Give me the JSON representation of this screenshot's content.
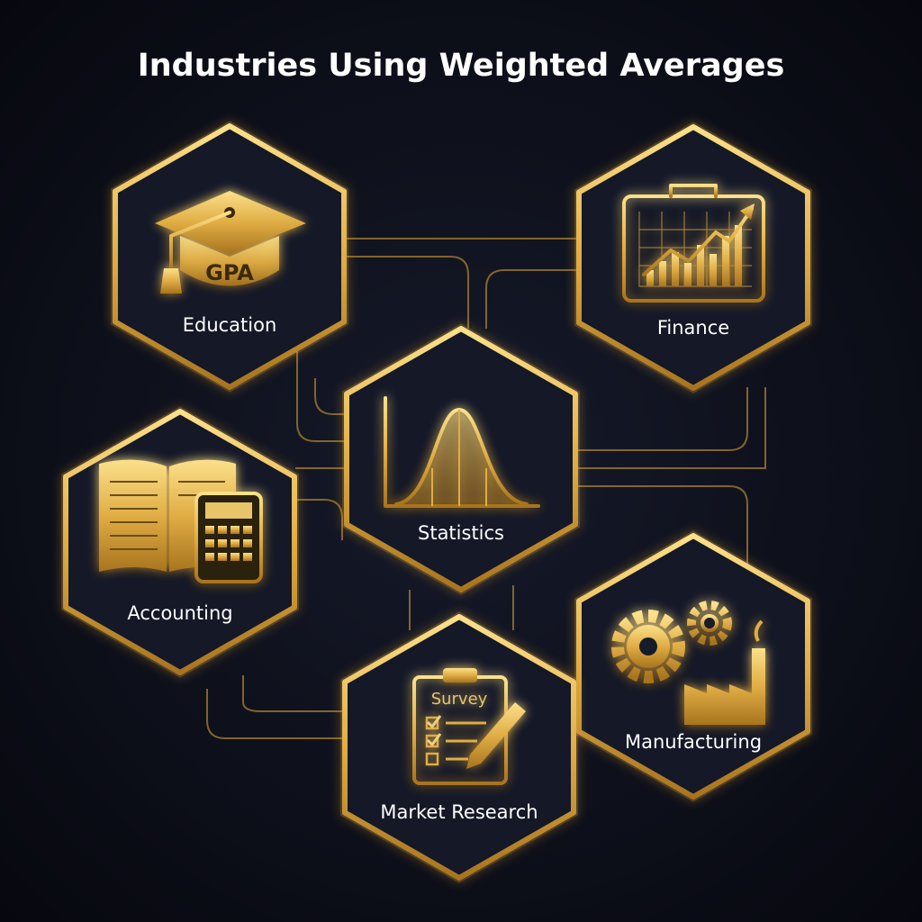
{
  "title": "Industries Using Weighted Averages",
  "nodes": [
    {
      "label": "Education",
      "icon_text": "GPA"
    },
    {
      "label": "Finance"
    },
    {
      "label": "Statistics"
    },
    {
      "label": "Accounting"
    },
    {
      "label": "Manufacturing"
    },
    {
      "label": "Market Research",
      "icon_text": "Survey"
    }
  ]
}
